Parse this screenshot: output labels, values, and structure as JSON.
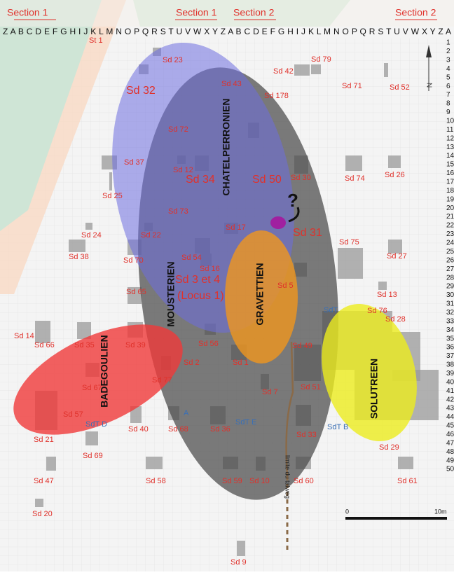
{
  "header": {
    "sections": [
      "Section 1",
      "Section 1",
      "Section 2",
      "Section 2"
    ],
    "columns": "Z A B C D E F G H I J K L M N O P Q R S T U V W X Y Z A B C D E F G H I J K L M N O P Q R S T U V W X Y Z A"
  },
  "rows": [
    1,
    2,
    3,
    4,
    5,
    6,
    7,
    8,
    9,
    10,
    11,
    12,
    13,
    14,
    15,
    16,
    17,
    18,
    19,
    20,
    21,
    22,
    23,
    24,
    25,
    26,
    27,
    28,
    29,
    30,
    31,
    32,
    33,
    34,
    35,
    36,
    37,
    38,
    39,
    40,
    41,
    42,
    43,
    44,
    45,
    46,
    47,
    48,
    49,
    50
  ],
  "features": [
    "St 1",
    "Sd 23",
    "Sd 32",
    "Sd 43",
    "Sd 42",
    "Sd 79",
    "Sd 71",
    "Sd 52",
    "Sd 178",
    "Sd 72",
    "Sd 37",
    "Sd 12",
    "Sd 34",
    "Sd 50",
    "Sd 30",
    "Sd 74",
    "Sd 26",
    "Sd 25",
    "Sd 73",
    "Sd 17",
    "Sd 31",
    "Sd 24",
    "Sd 22",
    "Sd 38",
    "Sd 70",
    "Sd 54",
    "Sd 16",
    "Sd 75",
    "Sd 27",
    "Sd 3 et 4",
    "(Locus 1)",
    "Sd 5",
    "Sd 13",
    "Sd 65",
    "Sd 76",
    "Sd 28",
    "Sd 14",
    "Sd 66",
    "Sd 35",
    "Sd 39",
    "Sd 56",
    "Sd 49",
    "Sd 2",
    "Sd 1",
    "Sd 77",
    "Sd 67",
    "Sd 7",
    "Sd 51",
    "Sd 57",
    "Sd 21",
    "Sd 40",
    "Sd 68",
    "Sd 36",
    "Sd 33",
    "Sd 29",
    "Sd 69",
    "Sd 47",
    "Sd 58",
    "Sd 59",
    "Sd 10",
    "Sd 60",
    "Sd 61",
    "Sd 20",
    "Sd 9"
  ],
  "test_pits": [
    "SdT D",
    "A",
    "SdT E",
    "SdT B",
    "SdT"
  ],
  "zones": [
    "CHATELPERRONIEN",
    "MOUSTERIEN",
    "GRAVETTIEN",
    "BADEGOULIEN",
    "SOLUTREEN"
  ],
  "annotations": {
    "question": "?",
    "talweg": "limite du talweg",
    "north": "N",
    "scale_start": "0",
    "scale_end": "10m"
  }
}
